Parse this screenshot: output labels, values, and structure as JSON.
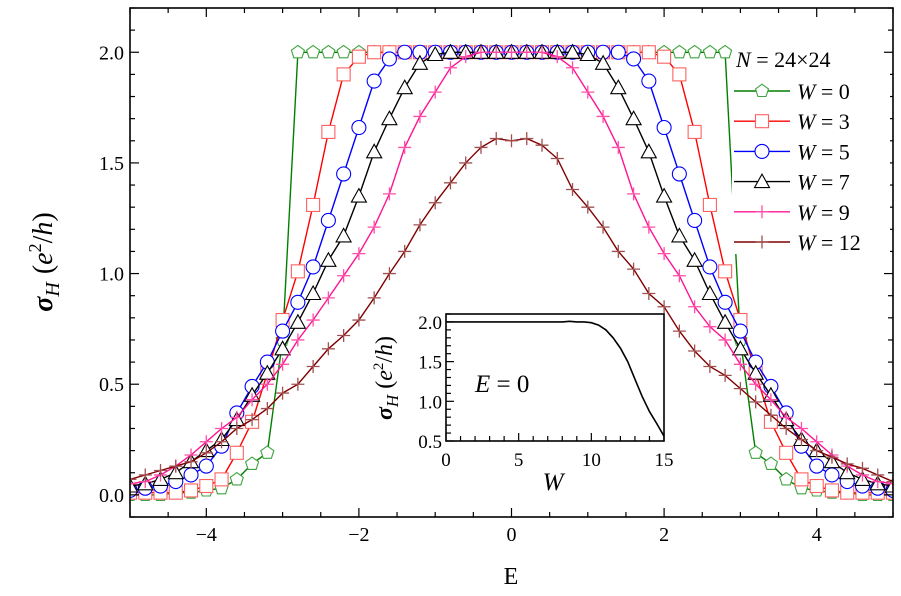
{
  "chart_data": [
    {
      "type": "line",
      "xlabel": "E",
      "ylabel": "σ_H (e²/h)",
      "ylabel_parts": {
        "sym": "σ",
        "sub": "H",
        "unit_open": "(",
        "unit_e": "e",
        "unit_sup": "2",
        "unit_rest": "/",
        "unit_h": "h",
        "unit_close": ")"
      },
      "xlim": [
        -5,
        5
      ],
      "ylim": [
        -0.1,
        2.2
      ],
      "x_ticks": [
        -4,
        -2,
        0,
        2,
        4
      ],
      "x_tick_labels": [
        "−4",
        "−2",
        "0",
        "2",
        "4"
      ],
      "y_ticks": [
        0,
        0.5,
        1.0,
        1.5,
        2.0
      ],
      "y_tick_labels": [
        "0.0",
        "0.5",
        "1.0",
        "1.5",
        "2.0"
      ],
      "grid": false,
      "legend": {
        "title": "N = 24×24",
        "title_parts": {
          "var": "N",
          "eq": " = 24×24"
        },
        "placement": "top-right"
      },
      "x": [
        -5.0,
        -4.8,
        -4.6,
        -4.4,
        -4.2,
        -4.0,
        -3.8,
        -3.6,
        -3.4,
        -3.2,
        -3.0,
        -2.8,
        -2.6,
        -2.4,
        -2.2,
        -2.0,
        -1.8,
        -1.6,
        -1.4,
        -1.2,
        -1.0,
        -0.8,
        -0.6,
        -0.4,
        -0.2,
        0.0,
        0.2,
        0.4,
        0.6,
        0.8,
        1.0,
        1.2,
        1.4,
        1.6,
        1.8,
        2.0,
        2.2,
        2.4,
        2.6,
        2.8,
        3.0,
        3.2,
        3.4,
        3.6,
        3.8,
        4.0,
        4.2,
        4.4,
        4.6,
        4.8,
        5.0
      ],
      "series": [
        {
          "name": "W = 0",
          "name_var": "W",
          "name_val": " = 0",
          "color": "#008000",
          "marker_color": "#3fa33f",
          "marker": "pentagon",
          "values": [
            0,
            0,
            0,
            0.01,
            0.01,
            0.02,
            0.03,
            0.07,
            0.14,
            0.19,
            0.7,
            2,
            2,
            2,
            2,
            2,
            2,
            2,
            2,
            2,
            2,
            2,
            2,
            2,
            2,
            2,
            2,
            2,
            2,
            2,
            2,
            2,
            2,
            2,
            2,
            2,
            2,
            2,
            2,
            2,
            0.7,
            0.19,
            0.14,
            0.07,
            0.03,
            0.02,
            0.01,
            0.01,
            0,
            0,
            0
          ]
        },
        {
          "name": "W = 3",
          "name_var": "W",
          "name_val": " = 3",
          "color": "#ff0000",
          "marker_color": "#ff6060",
          "marker": "square",
          "values": [
            0.01,
            0.01,
            0.01,
            0.01,
            0.02,
            0.04,
            0.07,
            0.19,
            0.33,
            0.55,
            0.79,
            1.01,
            1.31,
            1.64,
            1.9,
            1.98,
            2,
            2,
            2,
            2,
            2,
            2,
            2,
            2,
            2,
            2,
            2,
            2,
            2,
            2,
            2,
            2,
            2,
            2,
            2,
            1.98,
            1.9,
            1.64,
            1.31,
            1.01,
            0.79,
            0.55,
            0.33,
            0.19,
            0.07,
            0.04,
            0.02,
            0.01,
            0.01,
            0.01,
            0.01
          ]
        },
        {
          "name": "W = 5",
          "name_var": "W",
          "name_val": " = 5",
          "color": "#0000ff",
          "marker_color": "#0000ff",
          "marker": "circle",
          "values": [
            0.02,
            0.03,
            0.04,
            0.06,
            0.09,
            0.13,
            0.22,
            0.37,
            0.49,
            0.6,
            0.74,
            0.87,
            1.03,
            1.24,
            1.45,
            1.66,
            1.87,
            1.97,
            2,
            2,
            2,
            2,
            2,
            2,
            2,
            2,
            2,
            2,
            2,
            2,
            2,
            2,
            2,
            1.97,
            1.87,
            1.66,
            1.45,
            1.24,
            1.03,
            0.87,
            0.74,
            0.6,
            0.49,
            0.37,
            0.22,
            0.13,
            0.09,
            0.06,
            0.04,
            0.03,
            0.02
          ]
        },
        {
          "name": "W = 7",
          "name_var": "W",
          "name_val": " = 7",
          "color": "#000000",
          "marker_color": "#000000",
          "marker": "triangle",
          "values": [
            0.04,
            0.05,
            0.07,
            0.1,
            0.15,
            0.2,
            0.25,
            0.34,
            0.45,
            0.55,
            0.66,
            0.78,
            0.91,
            1.06,
            1.17,
            1.35,
            1.55,
            1.7,
            1.84,
            1.95,
            1.99,
            2,
            2,
            2,
            2,
            2,
            2,
            2,
            2,
            2,
            1.99,
            1.95,
            1.84,
            1.7,
            1.55,
            1.35,
            1.17,
            1.06,
            0.91,
            0.78,
            0.66,
            0.55,
            0.45,
            0.34,
            0.25,
            0.2,
            0.15,
            0.1,
            0.07,
            0.05,
            0.04
          ]
        },
        {
          "name": "W = 9",
          "name_var": "W",
          "name_val": " = 9",
          "color": "#ff1493",
          "marker_color": "#ff4fa8",
          "marker": "plus",
          "values": [
            0.05,
            0.06,
            0.09,
            0.13,
            0.18,
            0.24,
            0.3,
            0.35,
            0.43,
            0.5,
            0.59,
            0.7,
            0.79,
            0.89,
            0.99,
            1.09,
            1.21,
            1.36,
            1.57,
            1.71,
            1.82,
            1.93,
            1.98,
            2,
            2,
            2,
            2,
            2,
            1.98,
            1.93,
            1.82,
            1.71,
            1.57,
            1.36,
            1.21,
            1.09,
            0.99,
            0.85,
            0.76,
            0.7,
            0.59,
            0.5,
            0.43,
            0.35,
            0.3,
            0.24,
            0.18,
            0.13,
            0.09,
            0.06,
            0.05
          ]
        },
        {
          "name": "W = 12",
          "name_var": "W",
          "name_val": " = 12",
          "color": "#800000",
          "marker_color": "#a05050",
          "marker": "plus",
          "values": [
            0.07,
            0.09,
            0.11,
            0.13,
            0.15,
            0.19,
            0.24,
            0.3,
            0.34,
            0.39,
            0.46,
            0.5,
            0.58,
            0.66,
            0.72,
            0.79,
            0.89,
            1.0,
            1.1,
            1.22,
            1.32,
            1.41,
            1.5,
            1.57,
            1.61,
            1.6,
            1.61,
            1.58,
            1.52,
            1.38,
            1.3,
            1.21,
            1.1,
            1.02,
            0.91,
            0.85,
            0.74,
            0.65,
            0.58,
            0.54,
            0.48,
            0.42,
            0.36,
            0.3,
            0.25,
            0.2,
            0.17,
            0.14,
            0.12,
            0.09,
            0.06
          ]
        }
      ]
    },
    {
      "type": "line",
      "xlabel": "W",
      "ylabel": "σ_H (e²/h)",
      "annotation": "E = 0",
      "annotation_parts": {
        "var": "E",
        "eq": " = 0"
      },
      "xlim": [
        0,
        15
      ],
      "ylim": [
        0.5,
        2.1
      ],
      "x_ticks": [
        0,
        5,
        10,
        15
      ],
      "x_tick_labels": [
        "0",
        "5",
        "10",
        "15"
      ],
      "y_ticks": [
        0.5,
        1.0,
        1.5,
        2.0
      ],
      "y_tick_labels": [
        "0.5",
        "1.0",
        "1.5",
        "2.0"
      ],
      "grid": false,
      "x": [
        0,
        1,
        2,
        3,
        4,
        5,
        6,
        7,
        8,
        8.5,
        9,
        9.5,
        10,
        10.5,
        11,
        11.5,
        12,
        12.5,
        13,
        13.5,
        14,
        14.5,
        15
      ],
      "series": [
        {
          "color": "#000000",
          "values": [
            2,
            2,
            2,
            2,
            2,
            2,
            2,
            2,
            2,
            2.008,
            2,
            2,
            1.99,
            1.96,
            1.9,
            1.8,
            1.67,
            1.5,
            1.28,
            1.06,
            0.87,
            0.72,
            0.56
          ]
        }
      ]
    }
  ]
}
